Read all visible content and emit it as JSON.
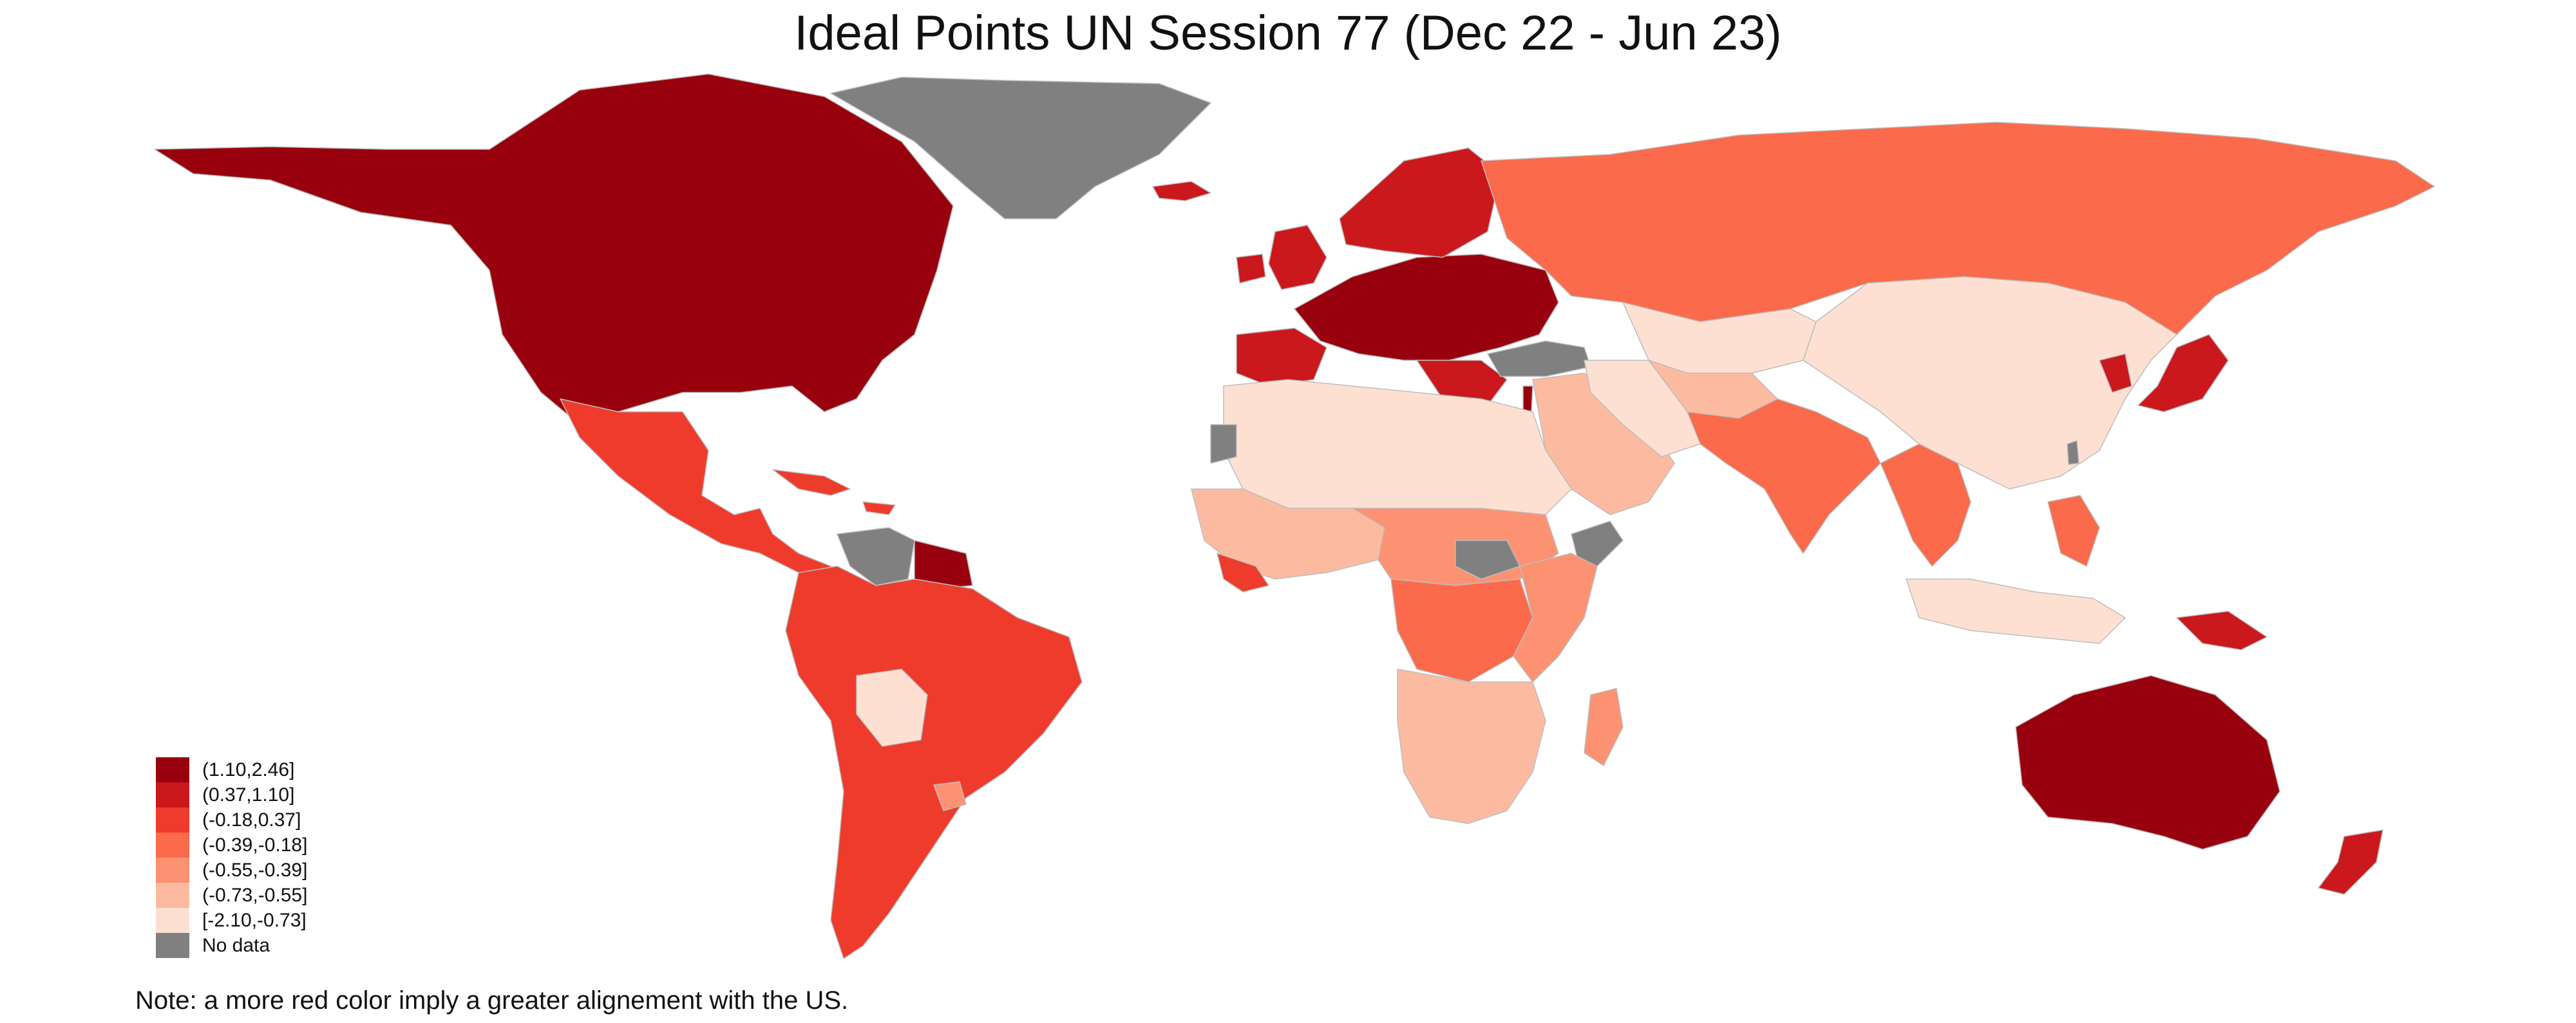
{
  "title": "Ideal Points UN Session 77 (Dec 22 - Jun 23)",
  "note": "Note: a more red color imply a greater alignement with the US.",
  "legend": [
    {
      "label": "(1.10,2.46]",
      "color": "#99000d"
    },
    {
      "label": "(0.37,1.10]",
      "color": "#cb181d"
    },
    {
      "label": "(-0.18,0.37]",
      "color": "#ef3b2c"
    },
    {
      "label": "(-0.39,-0.18]",
      "color": "#fb6a4a"
    },
    {
      "label": "(-0.55,-0.39]",
      "color": "#fc9272"
    },
    {
      "label": "(-0.73,-0.55]",
      "color": "#fcbba1"
    },
    {
      "label": "[-2.10,-0.73]",
      "color": "#fee0d2"
    },
    {
      "label": "No data",
      "color": "#808080"
    }
  ],
  "regions": [
    {
      "name": "north-america",
      "class": 0
    },
    {
      "name": "greenland",
      "class": 7
    },
    {
      "name": "iceland",
      "class": 1
    },
    {
      "name": "mexico-central-america",
      "class": 2
    },
    {
      "name": "caribbean",
      "class": 2
    },
    {
      "name": "venezuela",
      "class": 7
    },
    {
      "name": "suriname-guyana",
      "class": 0
    },
    {
      "name": "south-america",
      "class": 2
    },
    {
      "name": "bolivia",
      "class": 6
    },
    {
      "name": "uruguay",
      "class": 4
    },
    {
      "name": "western-europe",
      "class": 0
    },
    {
      "name": "uk-ireland",
      "class": 1
    },
    {
      "name": "iberia",
      "class": 1
    },
    {
      "name": "scandinavia",
      "class": 1
    },
    {
      "name": "balkans",
      "class": 1
    },
    {
      "name": "turkey",
      "class": 7
    },
    {
      "name": "russia",
      "class": 3
    },
    {
      "name": "china-mongolia",
      "class": 6
    },
    {
      "name": "kazakhstan",
      "class": 6
    },
    {
      "name": "central-asia",
      "class": 5
    },
    {
      "name": "japan",
      "class": 1
    },
    {
      "name": "korea",
      "class": 1
    },
    {
      "name": "india-pakistan",
      "class": 3
    },
    {
      "name": "southeast-asia",
      "class": 3
    },
    {
      "name": "indonesia",
      "class": 6
    },
    {
      "name": "philippines",
      "class": 3
    },
    {
      "name": "middle-east",
      "class": 5
    },
    {
      "name": "iran",
      "class": 6
    },
    {
      "name": "israel",
      "class": 0
    },
    {
      "name": "north-africa",
      "class": 6
    },
    {
      "name": "west-sahara",
      "class": 7
    },
    {
      "name": "west-africa",
      "class": 5
    },
    {
      "name": "gulf-of-guinea",
      "class": 2
    },
    {
      "name": "central-africa",
      "class": 4
    },
    {
      "name": "drc",
      "class": 3
    },
    {
      "name": "south-sudan",
      "class": 7
    },
    {
      "name": "somalia",
      "class": 7
    },
    {
      "name": "east-africa",
      "class": 4
    },
    {
      "name": "southern-africa",
      "class": 5
    },
    {
      "name": "madagascar",
      "class": 4
    },
    {
      "name": "australia",
      "class": 0
    },
    {
      "name": "new-zealand",
      "class": 1
    },
    {
      "name": "papua",
      "class": 1
    },
    {
      "name": "taiwan",
      "class": 7
    }
  ]
}
